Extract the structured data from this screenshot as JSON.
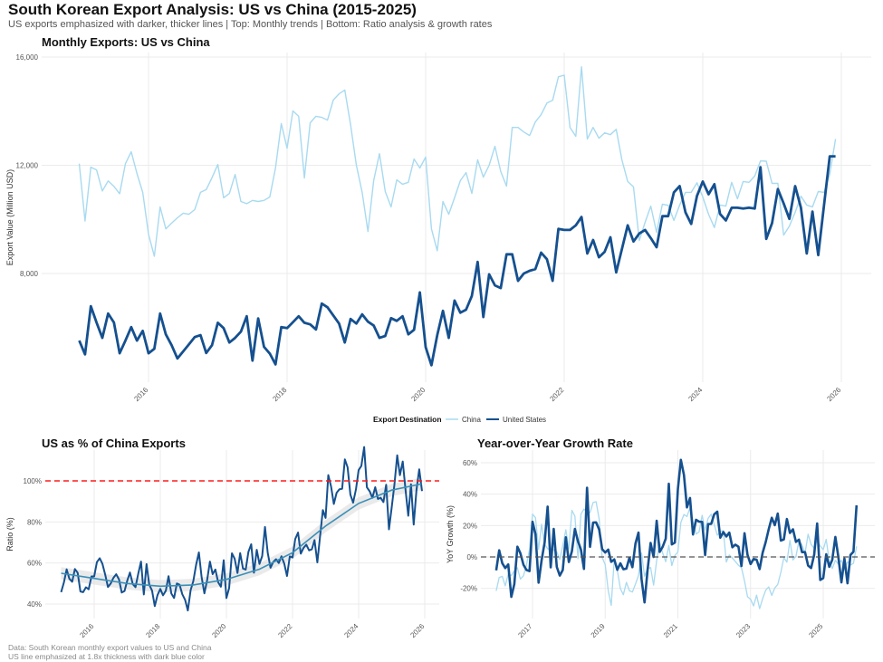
{
  "header": {
    "title": "South Korean Export Analysis: US vs China (2015-2025)",
    "subtitle": "US exports emphasized with darker, thicker lines | Top: Monthly trends | Bottom: Ratio analysis & growth rates"
  },
  "caption": {
    "line1": "Data: South Korean monthly export values to US and China",
    "line2": "US line emphasized at 1.8x thickness with dark blue color"
  },
  "colors": {
    "china": "#a8daf0",
    "us": "#15508f",
    "trend": "#3a8fb7",
    "band": "#d9d9d9",
    "reference": "#ff1a1a",
    "zero_line": "#555555",
    "grid": "#ebebeb"
  },
  "chart_data": [
    {
      "id": "monthly",
      "type": "line",
      "title": "Monthly Exports: US vs China",
      "xlabel": "",
      "ylabel": "Export Value (Million USD)",
      "x_start": "2015-01",
      "x_end": "2025-12",
      "frequency": "monthly",
      "xlim": [
        2015.0,
        2026.15
      ],
      "ylim": [
        4300,
        16000
      ],
      "yticks": [
        8000,
        12000,
        16000
      ],
      "ytick_labels": [
        "8,000",
        "12,000",
        "16,000"
      ],
      "xticks": [
        2016,
        2018,
        2020,
        2022,
        2024,
        2026
      ],
      "xtick_labels": [
        "2016",
        "2018",
        "2020",
        "2022",
        "2024",
        "2026"
      ],
      "grid": true,
      "legend": {
        "title": "Export Destination",
        "position": "bottom",
        "entries": [
          "China",
          "United States"
        ]
      },
      "series": [
        {
          "name": "China",
          "key": "china",
          "values": [
            12060,
            9940,
            11930,
            11830,
            11050,
            11420,
            11220,
            10950,
            12060,
            12500,
            11700,
            11000,
            9450,
            8640,
            10460,
            9650,
            9860,
            10060,
            10230,
            10190,
            10360,
            11000,
            11100,
            11540,
            12030,
            10800,
            10960,
            11660,
            10660,
            10580,
            10700,
            10660,
            10700,
            10830,
            11900,
            13540,
            12630,
            14010,
            13810,
            11530,
            13570,
            13810,
            13770,
            13670,
            14410,
            14640,
            14780,
            13500,
            12000,
            11000,
            9550,
            11430,
            12430,
            11030,
            10460,
            11460,
            11300,
            11370,
            12230,
            11900,
            12300,
            9650,
            8840,
            10660,
            10190,
            10800,
            11430,
            11730,
            10960,
            12200,
            11560,
            12000,
            12700,
            11770,
            11230,
            13400,
            13400,
            13230,
            13100,
            13600,
            13870,
            14300,
            14400,
            15270,
            15330,
            13400,
            13070,
            15640,
            12970,
            13400,
            13000,
            13200,
            13130,
            13330,
            12200,
            11400,
            11200,
            9220,
            9890,
            10490,
            9520,
            10560,
            10520,
            9960,
            10530,
            11000,
            11000,
            11350,
            10830,
            10190,
            9700,
            10530,
            10490,
            11370,
            10760,
            11400,
            11370,
            11600,
            12160,
            12150,
            11330,
            11330,
            9420,
            9750,
            10260,
            10860,
            10530,
            10460,
            11030,
            11000,
            11670,
            12970
          ]
        },
        {
          "name": "United States",
          "key": "us",
          "values": [
            5520,
            5010,
            6790,
            6190,
            5620,
            6520,
            6190,
            5050,
            5520,
            6020,
            5520,
            5880,
            5050,
            5220,
            6520,
            5750,
            5350,
            4860,
            5120,
            5380,
            5650,
            5720,
            5060,
            5350,
            6180,
            5980,
            5450,
            5620,
            5850,
            6420,
            4780,
            6340,
            5290,
            5040,
            4640,
            6020,
            5980,
            6200,
            6420,
            6180,
            6120,
            5930,
            6890,
            6750,
            6450,
            6150,
            5450,
            6320,
            6150,
            6490,
            6220,
            6080,
            5620,
            5690,
            6350,
            6250,
            6420,
            5750,
            5920,
            7300,
            5280,
            4610,
            5720,
            6620,
            5620,
            7000,
            6550,
            6660,
            7170,
            8430,
            6390,
            7970,
            7560,
            7460,
            8710,
            8710,
            7730,
            8000,
            8100,
            8160,
            8770,
            8530,
            7730,
            9650,
            9610,
            9610,
            9780,
            10090,
            8740,
            9240,
            8600,
            8800,
            9340,
            8040,
            8900,
            9780,
            9180,
            9480,
            9610,
            9310,
            8970,
            10120,
            10120,
            11000,
            11230,
            10260,
            9830,
            10870,
            11400,
            10930,
            11300,
            10200,
            9960,
            10430,
            10430,
            10400,
            10430,
            10400,
            11930,
            9280,
            9860,
            11120,
            10590,
            10020,
            11230,
            10430,
            8740,
            10290,
            8680,
            10530,
            12330,
            12330
          ]
        }
      ]
    },
    {
      "id": "ratio",
      "type": "line",
      "title": "US as % of China Exports",
      "xlabel": "",
      "ylabel": "Ratio (%)",
      "derived_from": "United States / China * 100, monthly",
      "xlim": [
        2014.75,
        2026.4
      ],
      "ylim": [
        33,
        113
      ],
      "yticks": [
        40,
        60,
        80,
        100
      ],
      "ytick_labels": [
        "40%",
        "60%",
        "80%",
        "100%"
      ],
      "xticks": [
        2016,
        2018,
        2020,
        2022,
        2024,
        2026
      ],
      "xtick_labels": [
        "2016",
        "2018",
        "2020",
        "2022",
        "2024",
        "2026"
      ],
      "reference_line": {
        "value": 100,
        "style": "dashed",
        "label": "100%"
      },
      "trend": {
        "type": "loess-smooth",
        "points": [
          [
            2015.0,
            55
          ],
          [
            2016.0,
            52.5
          ],
          [
            2017.0,
            50
          ],
          [
            2018.0,
            48.7
          ],
          [
            2019.0,
            49.3
          ],
          [
            2020.0,
            52
          ],
          [
            2021.0,
            57
          ],
          [
            2022.0,
            65
          ],
          [
            2023.0,
            78
          ],
          [
            2024.0,
            89
          ],
          [
            2025.0,
            95.5
          ],
          [
            2025.9,
            98.5
          ]
        ]
      },
      "grid": true
    },
    {
      "id": "yoy",
      "type": "line",
      "title": "Year-over-Year Growth Rate",
      "xlabel": "",
      "ylabel": "YoY Growth (%)",
      "derived_from": "12-month % change of each series",
      "xlim": [
        2015.55,
        2026.2
      ],
      "ylim": [
        -35,
        65
      ],
      "yticks": [
        -20,
        0,
        20,
        40,
        60
      ],
      "ytick_labels": [
        "-20%",
        "0%",
        "20%",
        "40%",
        "60%"
      ],
      "xticks": [
        2017,
        2019,
        2021,
        2023,
        2025
      ],
      "xtick_labels": [
        "2017",
        "2019",
        "2021",
        "2023",
        "2025"
      ],
      "reference_line": {
        "value": 0,
        "style": "dashed",
        "label": "0%"
      },
      "grid": true
    }
  ]
}
